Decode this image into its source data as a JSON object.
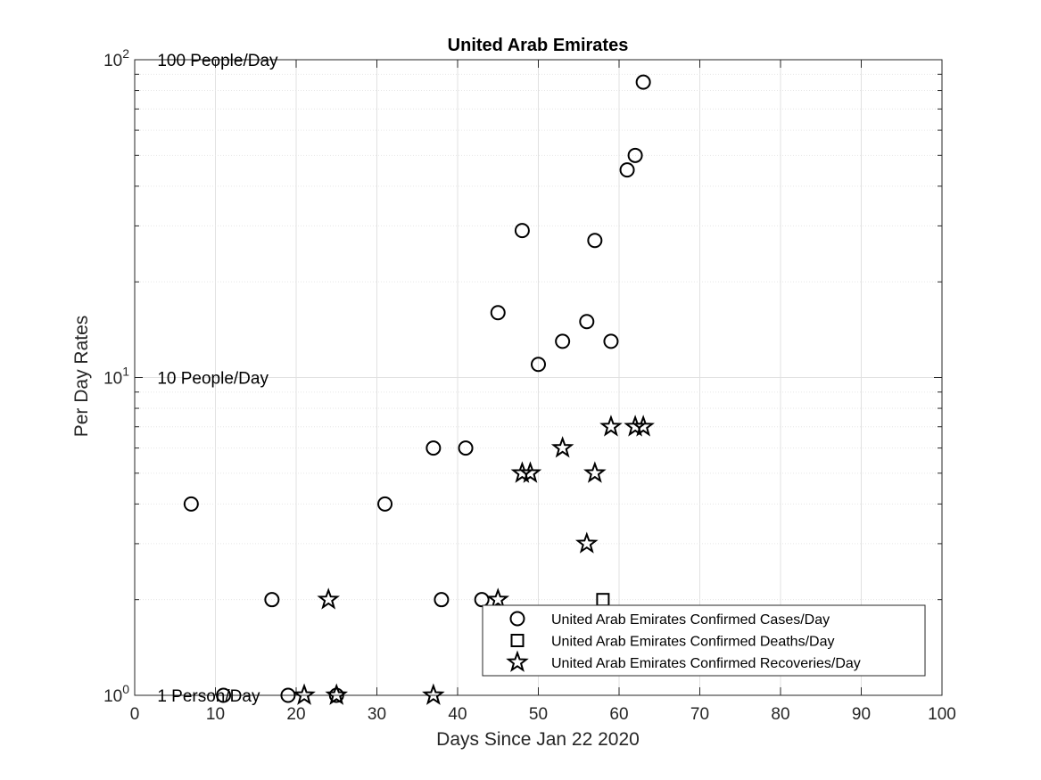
{
  "chart_data": {
    "type": "scatter",
    "title": "United Arab Emirates",
    "xlabel": "Days Since Jan 22 2020",
    "ylabel": "Per Day Rates",
    "xlim": [
      0,
      100
    ],
    "ylim": [
      1,
      100
    ],
    "yscale": "log",
    "grid": true,
    "legend_position": "bottom-right",
    "x_ticks": [
      "0",
      "10",
      "20",
      "30",
      "40",
      "50",
      "60",
      "70",
      "80",
      "90",
      "100"
    ],
    "y_ticks": [
      {
        "base": "10",
        "exp": "0"
      },
      {
        "base": "10",
        "exp": "1"
      },
      {
        "base": "10",
        "exp": "2"
      }
    ],
    "annotations": [
      {
        "text": "100 People/Day",
        "x": 2.8,
        "y": 100
      },
      {
        "text": "10 People/Day",
        "x": 2.8,
        "y": 10
      },
      {
        "text": "1 Person/Day",
        "x": 2.8,
        "y": 1
      }
    ],
    "series": [
      {
        "name": "United Arab Emirates Confirmed Cases/Day",
        "marker": "circle",
        "points": [
          [
            7,
            4
          ],
          [
            11,
            1
          ],
          [
            17,
            2
          ],
          [
            19,
            1
          ],
          [
            25,
            1
          ],
          [
            31,
            4
          ],
          [
            37,
            6
          ],
          [
            38,
            2
          ],
          [
            41,
            6
          ],
          [
            43,
            2
          ],
          [
            45,
            16
          ],
          [
            48,
            29
          ],
          [
            50,
            11
          ],
          [
            53,
            13
          ],
          [
            56,
            15
          ],
          [
            57,
            27
          ],
          [
            59,
            13
          ],
          [
            61,
            45
          ],
          [
            62,
            50
          ],
          [
            63,
            85
          ]
        ]
      },
      {
        "name": "United Arab Emirates Confirmed Deaths/Day",
        "marker": "square",
        "points": [
          [
            58,
            2
          ]
        ]
      },
      {
        "name": "United Arab Emirates Confirmed Recoveries/Day",
        "marker": "star",
        "points": [
          [
            21,
            1
          ],
          [
            24,
            2
          ],
          [
            25,
            1
          ],
          [
            37,
            1
          ],
          [
            45,
            2
          ],
          [
            48,
            5
          ],
          [
            49,
            5
          ],
          [
            53,
            6
          ],
          [
            56,
            3
          ],
          [
            57,
            5
          ],
          [
            59,
            7
          ],
          [
            62,
            7
          ],
          [
            63,
            7
          ]
        ]
      }
    ]
  }
}
